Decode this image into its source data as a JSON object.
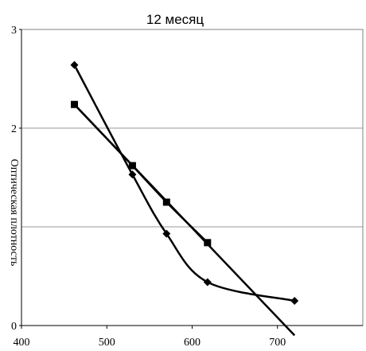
{
  "chart_data": {
    "type": "line",
    "title": "12 месяц",
    "xlabel": "",
    "ylabel": "Оптическая плотность",
    "xlim": [
      400,
      800
    ],
    "ylim": [
      0,
      3
    ],
    "x_ticks": [
      400,
      500,
      600,
      700
    ],
    "y_ticks": [
      0,
      2,
      3
    ],
    "grid": "horizontal",
    "series": [
      {
        "marker": "diamond",
        "color": "#000000",
        "points": [
          [
            462,
            2.64
          ],
          [
            530,
            1.53
          ],
          [
            570,
            0.93
          ],
          [
            618,
            0.44
          ],
          [
            720,
            0.25
          ]
        ]
      },
      {
        "marker": "square",
        "color": "#000000",
        "points": [
          [
            462,
            2.24
          ],
          [
            530,
            1.62
          ],
          [
            570,
            1.25
          ],
          [
            618,
            0.84
          ]
        ]
      },
      {
        "marker": "none",
        "color": "#000000",
        "points": [
          [
            462,
            2.24
          ],
          [
            720,
            -0.1
          ]
        ]
      }
    ]
  }
}
